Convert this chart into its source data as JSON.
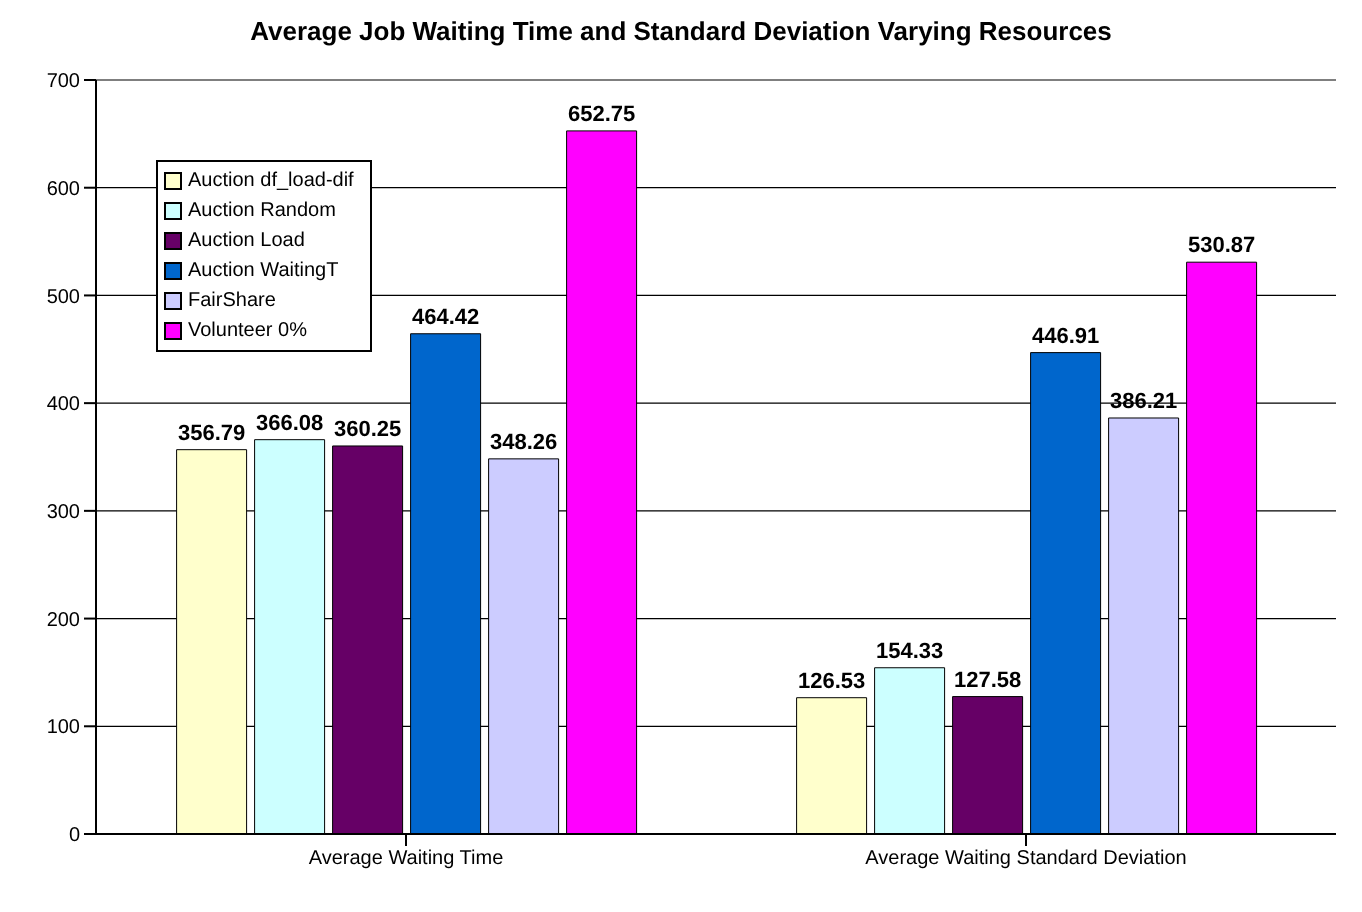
{
  "chart_data": {
    "type": "bar",
    "title": "Average Job Waiting Time and Standard Deviation Varying Resources",
    "categories": [
      "Average Waiting Time",
      "Average Waiting Standard Deviation"
    ],
    "series": [
      {
        "name": "Auction df_load-dif",
        "color": "#ffffcc",
        "values": [
          356.79,
          126.53
        ]
      },
      {
        "name": "Auction Random",
        "color": "#ccffff",
        "values": [
          366.08,
          154.33
        ]
      },
      {
        "name": "Auction Load",
        "color": "#660066",
        "values": [
          360.25,
          127.58
        ]
      },
      {
        "name": "Auction WaitingT",
        "color": "#0066cc",
        "values": [
          464.42,
          446.91
        ]
      },
      {
        "name": "FairShare",
        "color": "#ccccff",
        "values": [
          348.26,
          386.21
        ]
      },
      {
        "name": "Volunteer 0%",
        "color": "#ff00ff",
        "values": [
          652.75,
          530.87
        ]
      }
    ],
    "ylim": [
      0,
      700
    ],
    "yticks": [
      0,
      100,
      200,
      300,
      400,
      500,
      600,
      700
    ],
    "grid": "y",
    "legend": "top left",
    "data_labels": true
  }
}
